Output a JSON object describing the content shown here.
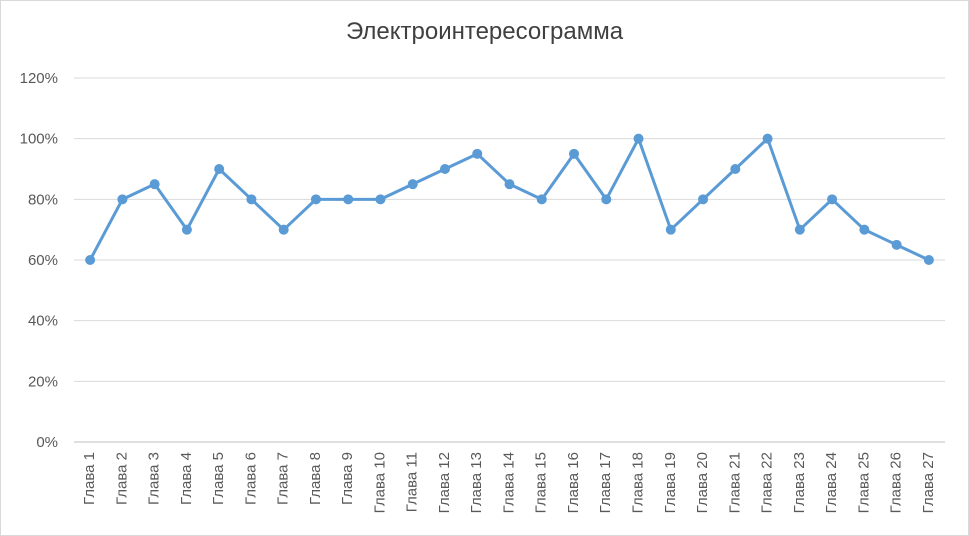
{
  "chart_data": {
    "type": "line",
    "title": "Электроинтересограмма",
    "categories": [
      "Глава 1",
      "Глава 2",
      "Глава 3",
      "Глава 4",
      "Глава 5",
      "Глава 6",
      "Глава 7",
      "Глава 8",
      "Глава 9",
      "Глава 10",
      "Глава 11",
      "Глава 12",
      "Глава 13",
      "Глава 14",
      "Глава 15",
      "Глава 16",
      "Глава 17",
      "Глава 18",
      "Глава 19",
      "Глава 20",
      "Глава 21",
      "Глава 22",
      "Глава 23",
      "Глава 24",
      "Глава 25",
      "Глава 26",
      "Глава 27"
    ],
    "series": [
      {
        "values": [
          60,
          80,
          85,
          70,
          90,
          80,
          70,
          80,
          80,
          80,
          85,
          90,
          95,
          85,
          80,
          95,
          80,
          100,
          70,
          80,
          90,
          100,
          70,
          80,
          70,
          65,
          60
        ],
        "color": "#5b9bd5"
      }
    ],
    "y_ticks": [
      "0%",
      "20%",
      "40%",
      "60%",
      "80%",
      "100%",
      "120%"
    ],
    "ylim": [
      0,
      120
    ],
    "grid": true,
    "legend": "none"
  }
}
